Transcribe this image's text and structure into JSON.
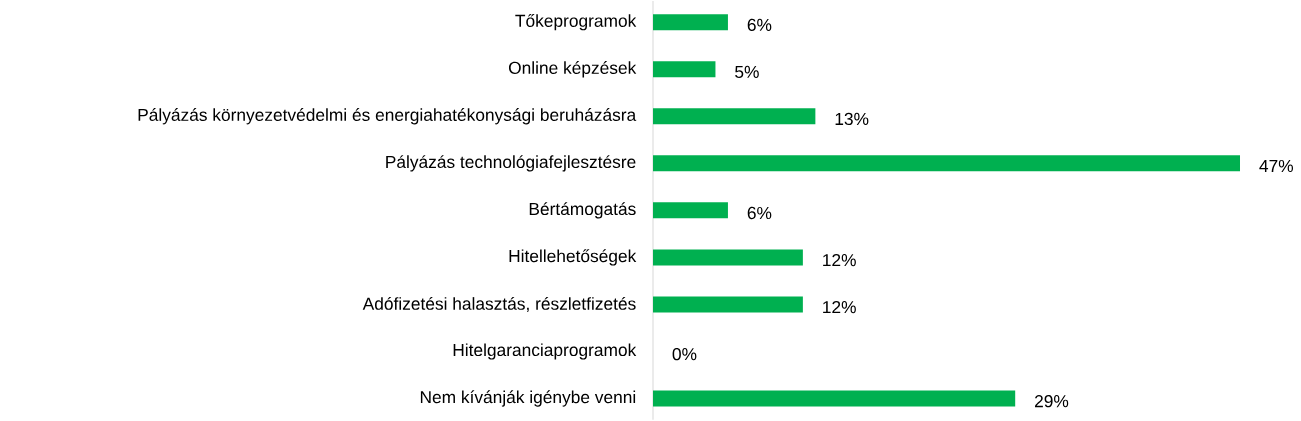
{
  "chart_data": {
    "type": "bar",
    "orientation": "horizontal",
    "color": "#00b050",
    "categories": [
      "Tőkeprogramok",
      "Online képzések",
      "Pályázás környezetvédelmi és energiahatékonysági beruházásra",
      "Pályázás technológiafejlesztésre",
      "Bértámogatás",
      "Hitellehetőségek",
      "Adófizetési halasztás, részletfizetés",
      "Hitelgaranciaprogramok",
      "Nem kívánják igénybe venni"
    ],
    "values": [
      6,
      5,
      13,
      47,
      6,
      12,
      12,
      0,
      29
    ],
    "value_labels": [
      "6%",
      "5%",
      "13%",
      "47%",
      "6%",
      "12%",
      "12%",
      "0%",
      "29%"
    ]
  }
}
